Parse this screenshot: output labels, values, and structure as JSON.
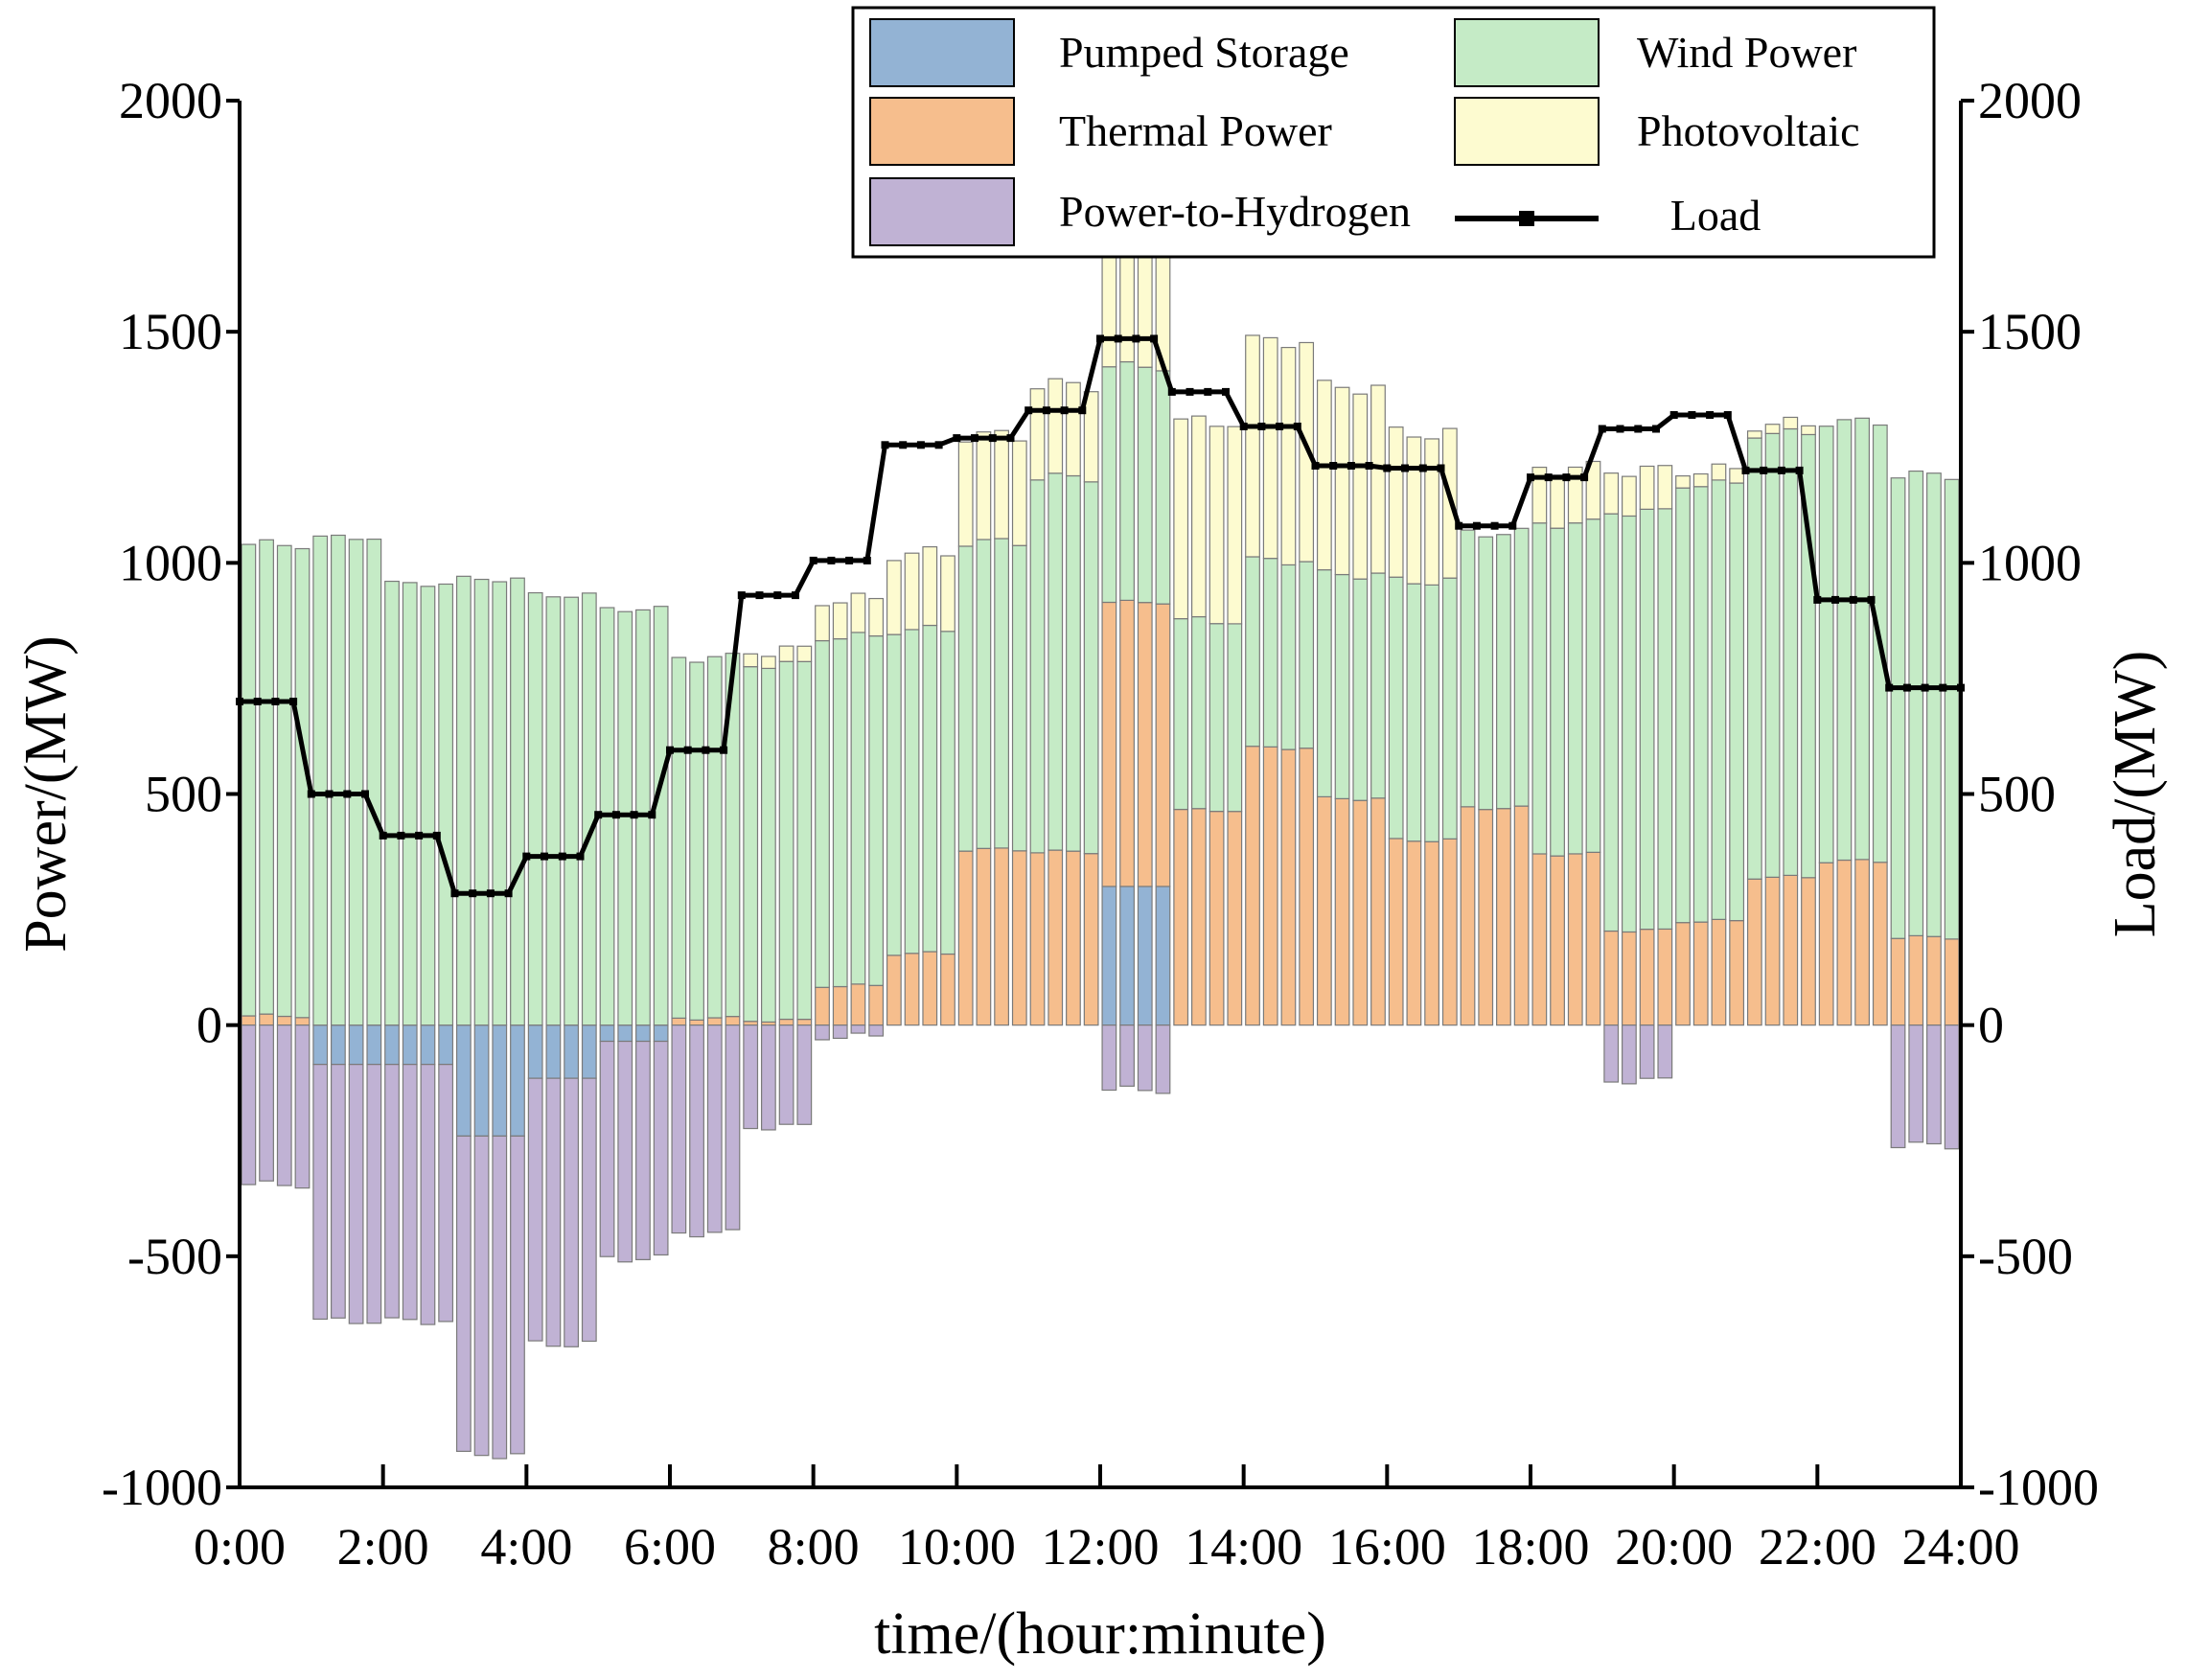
{
  "chart_data": {
    "type": "bar",
    "subtype": "stacked bar with line overlay (dual y-axis)",
    "xlabel": "time/(hour:minute)",
    "ylabel_left": "Power/(MW)",
    "ylabel_right": "Load/(MW)",
    "ylim": [
      -1000,
      2000
    ],
    "yticks": [
      2000,
      1500,
      1000,
      500,
      0,
      -500,
      -1000
    ],
    "x_tick_labels": [
      "0:00",
      "2:00",
      "4:00",
      "6:00",
      "8:00",
      "10:00",
      "12:00",
      "14:00",
      "16:00",
      "18:00",
      "20:00",
      "22:00",
      "24:00"
    ],
    "interval_minutes": 15,
    "bars_per_hour": 4,
    "grid": false,
    "legend_position": "top-right",
    "legend": [
      {
        "key": "pumped",
        "label": "Pumped Storage",
        "color": "#93b3d4"
      },
      {
        "key": "wind",
        "label": "Wind Power",
        "color": "#c5ebc6"
      },
      {
        "key": "thermal",
        "label": "Thermal Power",
        "color": "#f6be8d"
      },
      {
        "key": "pv",
        "label": "Photovoltaic",
        "color": "#fdfbd0"
      },
      {
        "key": "p2h",
        "label": "Power-to-Hydrogen",
        "color": "#c0b2d4"
      },
      {
        "key": "load",
        "label": "Load",
        "color": "#000000"
      }
    ],
    "hourly_series": {
      "thermal": [
        20,
        0,
        0,
        0,
        0,
        0,
        15,
        10,
        85,
        155,
        380,
        375,
        615,
        465,
        600,
        490,
        400,
        470,
        370,
        205,
        225,
        320,
        355,
        190,
        150
      ],
      "pumped": [
        0,
        -85,
        -85,
        -240,
        -115,
        -35,
        0,
        0,
        0,
        0,
        0,
        0,
        300,
        0,
        0,
        0,
        0,
        0,
        0,
        0,
        0,
        0,
        0,
        0,
        135
      ],
      "wind": [
        1020,
        1055,
        955,
        965,
        930,
        900,
        780,
        770,
        755,
        700,
        665,
        810,
        510,
        410,
        405,
        485,
        560,
        595,
        715,
        905,
        945,
        960,
        950,
        1000,
        1060
      ],
      "pv": [
        0,
        0,
        0,
        0,
        0,
        0,
        0,
        30,
        80,
        165,
        230,
        200,
        290,
        430,
        475,
        405,
        320,
        0,
        120,
        90,
        30,
        20,
        0,
        0,
        0
      ],
      "p2h": [
        -345,
        -555,
        -555,
        -690,
        -575,
        -470,
        -450,
        -220,
        -25,
        0,
        0,
        0,
        -140,
        0,
        0,
        0,
        0,
        0,
        0,
        -120,
        0,
        0,
        0,
        -260,
        -475
      ],
      "load": [
        700,
        500,
        410,
        285,
        365,
        455,
        595,
        930,
        1005,
        1255,
        1270,
        1330,
        1485,
        1370,
        1295,
        1210,
        1205,
        1080,
        1185,
        1290,
        1320,
        1200,
        920,
        730,
        730
      ]
    }
  }
}
